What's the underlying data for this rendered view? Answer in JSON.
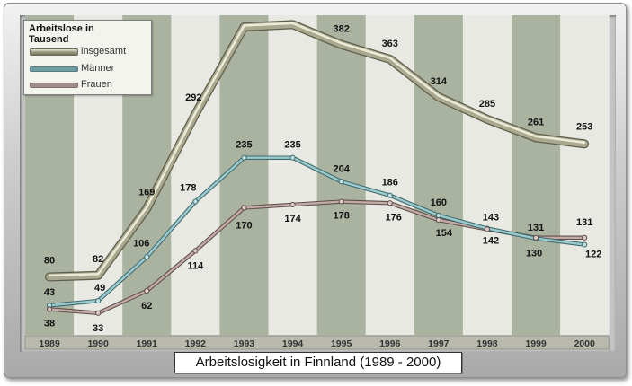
{
  "caption": "Arbeitslosigkeit in Finnland (1989 - 2000)",
  "legend": {
    "title": "Arbeitslose in Tausend",
    "items": [
      {
        "label": "insgesamt",
        "color": "#a8a890"
      },
      {
        "label": "Männer",
        "color": "#6e9ca0"
      },
      {
        "label": "Frauen",
        "color": "#a08c88"
      }
    ]
  },
  "colors": {
    "band_dark": "#aab3a0",
    "band_light": "#e9e9e3",
    "axis_band": "#b9b9ad"
  },
  "chart_data": {
    "type": "line",
    "title": "Arbeitslosigkeit in Finnland (1989 - 2000)",
    "xlabel": "",
    "ylabel": "Arbeitslose in Tausend",
    "categories": [
      "1989",
      "1990",
      "1991",
      "1992",
      "1993",
      "1994",
      "1995",
      "1996",
      "1997",
      "1998",
      "1999",
      "2000"
    ],
    "ylim": [
      0,
      430
    ],
    "grid": false,
    "legend_position": "top-left",
    "series": [
      {
        "name": "insgesamt",
        "values": [
          80,
          82,
          169,
          292,
          405,
          408,
          382,
          363,
          314,
          285,
          261,
          253
        ]
      },
      {
        "name": "Männer",
        "values": [
          43,
          49,
          106,
          178,
          235,
          235,
          204,
          186,
          160,
          143,
          130,
          122
        ]
      },
      {
        "name": "Frauen",
        "values": [
          38,
          33,
          62,
          114,
          170,
          174,
          178,
          176,
          154,
          142,
          131,
          131
        ]
      }
    ]
  }
}
